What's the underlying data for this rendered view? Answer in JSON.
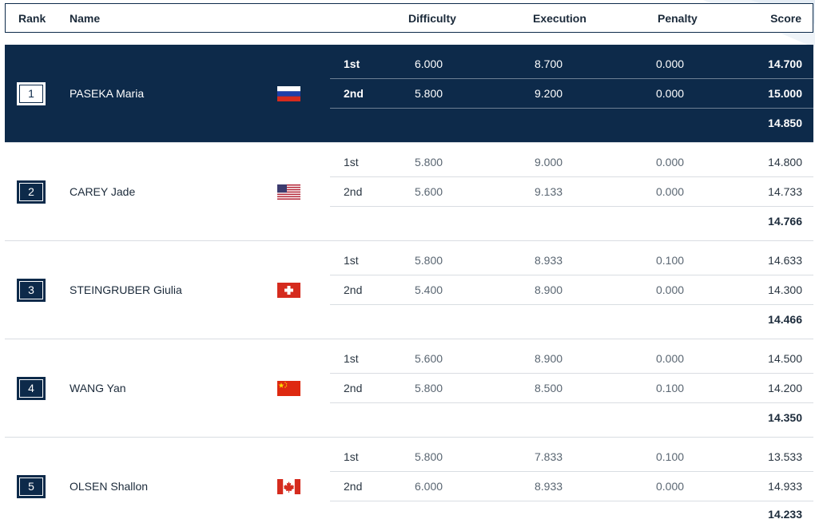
{
  "header": {
    "rank": "Rank",
    "name": "Name",
    "difficulty": "Difficulty",
    "execution": "Execution",
    "penalty": "Penalty",
    "score": "Score"
  },
  "athletes": [
    {
      "rank": "1",
      "name": "PASEKA Maria",
      "flag": "russia-flag-icon",
      "final": "14.850",
      "runs": [
        {
          "label": "1st",
          "difficulty": "6.000",
          "execution": "8.700",
          "penalty": "0.000",
          "score": "14.700"
        },
        {
          "label": "2nd",
          "difficulty": "5.800",
          "execution": "9.200",
          "penalty": "0.000",
          "score": "15.000"
        }
      ]
    },
    {
      "rank": "2",
      "name": "CAREY Jade",
      "flag": "usa-flag-icon",
      "final": "14.766",
      "runs": [
        {
          "label": "1st",
          "difficulty": "5.800",
          "execution": "9.000",
          "penalty": "0.000",
          "score": "14.800"
        },
        {
          "label": "2nd",
          "difficulty": "5.600",
          "execution": "9.133",
          "penalty": "0.000",
          "score": "14.733"
        }
      ]
    },
    {
      "rank": "3",
      "name": "STEINGRUBER Giulia",
      "flag": "switzerland-flag-icon",
      "final": "14.466",
      "runs": [
        {
          "label": "1st",
          "difficulty": "5.800",
          "execution": "8.933",
          "penalty": "0.100",
          "score": "14.633"
        },
        {
          "label": "2nd",
          "difficulty": "5.400",
          "execution": "8.900",
          "penalty": "0.000",
          "score": "14.300"
        }
      ]
    },
    {
      "rank": "4",
      "name": "WANG Yan",
      "flag": "china-flag-icon",
      "final": "14.350",
      "runs": [
        {
          "label": "1st",
          "difficulty": "5.600",
          "execution": "8.900",
          "penalty": "0.000",
          "score": "14.500"
        },
        {
          "label": "2nd",
          "difficulty": "5.800",
          "execution": "8.500",
          "penalty": "0.100",
          "score": "14.200"
        }
      ]
    },
    {
      "rank": "5",
      "name": "OLSEN Shallon",
      "flag": "canada-flag-icon",
      "final": "14.233",
      "runs": [
        {
          "label": "1st",
          "difficulty": "5.800",
          "execution": "7.833",
          "penalty": "0.100",
          "score": "13.533"
        },
        {
          "label": "2nd",
          "difficulty": "6.000",
          "execution": "8.933",
          "penalty": "0.000",
          "score": "14.933"
        }
      ]
    }
  ],
  "colors": {
    "navy": "#0d2a4a",
    "divider": "#d9dde2",
    "russia": [
      "#ffffff",
      "#1c3faa",
      "#d52b1e"
    ],
    "usa": [
      "#b22234",
      "#ffffff",
      "#3c3b6e"
    ],
    "switzerland": [
      "#d52b1e",
      "#ffffff"
    ],
    "china": [
      "#de2910",
      "#ffde00"
    ],
    "canada": [
      "#d52b1e",
      "#ffffff"
    ]
  }
}
